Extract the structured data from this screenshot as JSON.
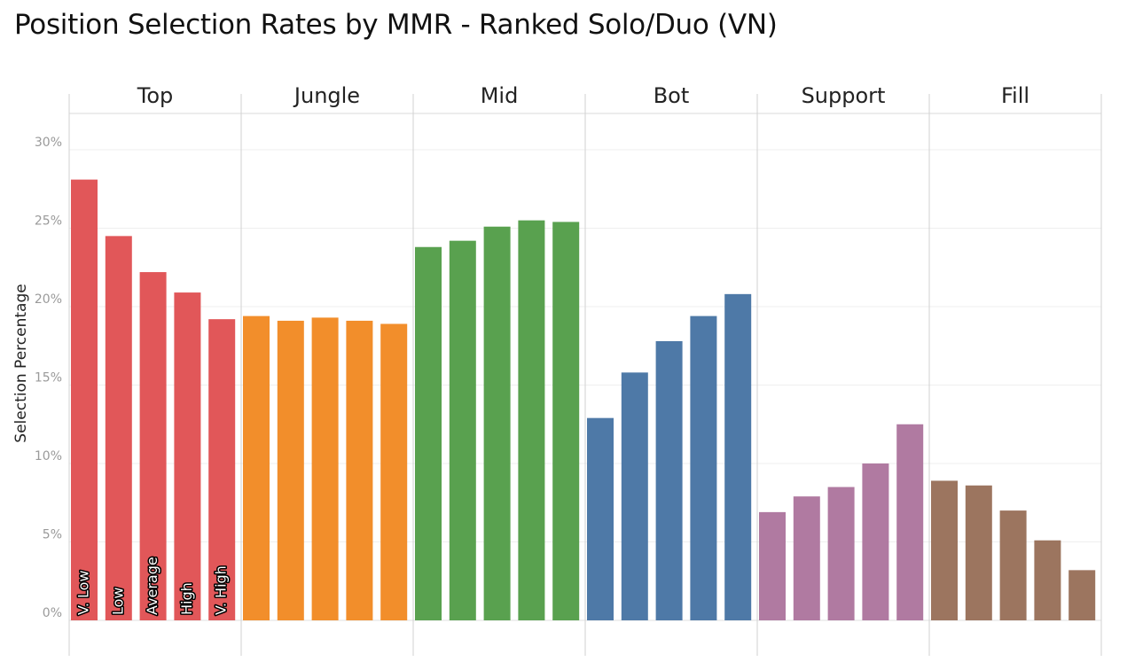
{
  "title": "Position Selection Rates by MMR - Ranked Solo/Duo (VN)",
  "chart_data": {
    "type": "bar",
    "title": "Position Selection Rates by MMR - Ranked Solo/Duo (VN)",
    "xlabel": "",
    "ylabel": "Selection Percentage",
    "ylim": [
      0,
      30
    ],
    "yticks": [
      "0%",
      "5%",
      "10%",
      "15%",
      "20%",
      "25%",
      "30%"
    ],
    "grid": true,
    "mmr_levels": [
      "V. Low",
      "Low",
      "Average",
      "High",
      "V. High"
    ],
    "panels": [
      {
        "name": "Top",
        "color": "#e15759",
        "values": [
          28.1,
          24.5,
          22.2,
          20.9,
          19.2
        ]
      },
      {
        "name": "Jungle",
        "color": "#f28e2b",
        "values": [
          19.4,
          19.1,
          19.3,
          19.1,
          18.9
        ]
      },
      {
        "name": "Mid",
        "color": "#59a14f",
        "values": [
          23.8,
          24.2,
          25.1,
          25.5,
          25.4
        ]
      },
      {
        "name": "Bot",
        "color": "#4e79a7",
        "values": [
          12.9,
          15.8,
          17.8,
          19.4,
          20.8
        ]
      },
      {
        "name": "Support",
        "color": "#b07aa1",
        "values": [
          6.9,
          7.9,
          8.5,
          10.0,
          12.5
        ]
      },
      {
        "name": "Fill",
        "color": "#9c755f",
        "values": [
          8.9,
          8.6,
          7.0,
          5.1,
          3.2
        ]
      }
    ]
  }
}
